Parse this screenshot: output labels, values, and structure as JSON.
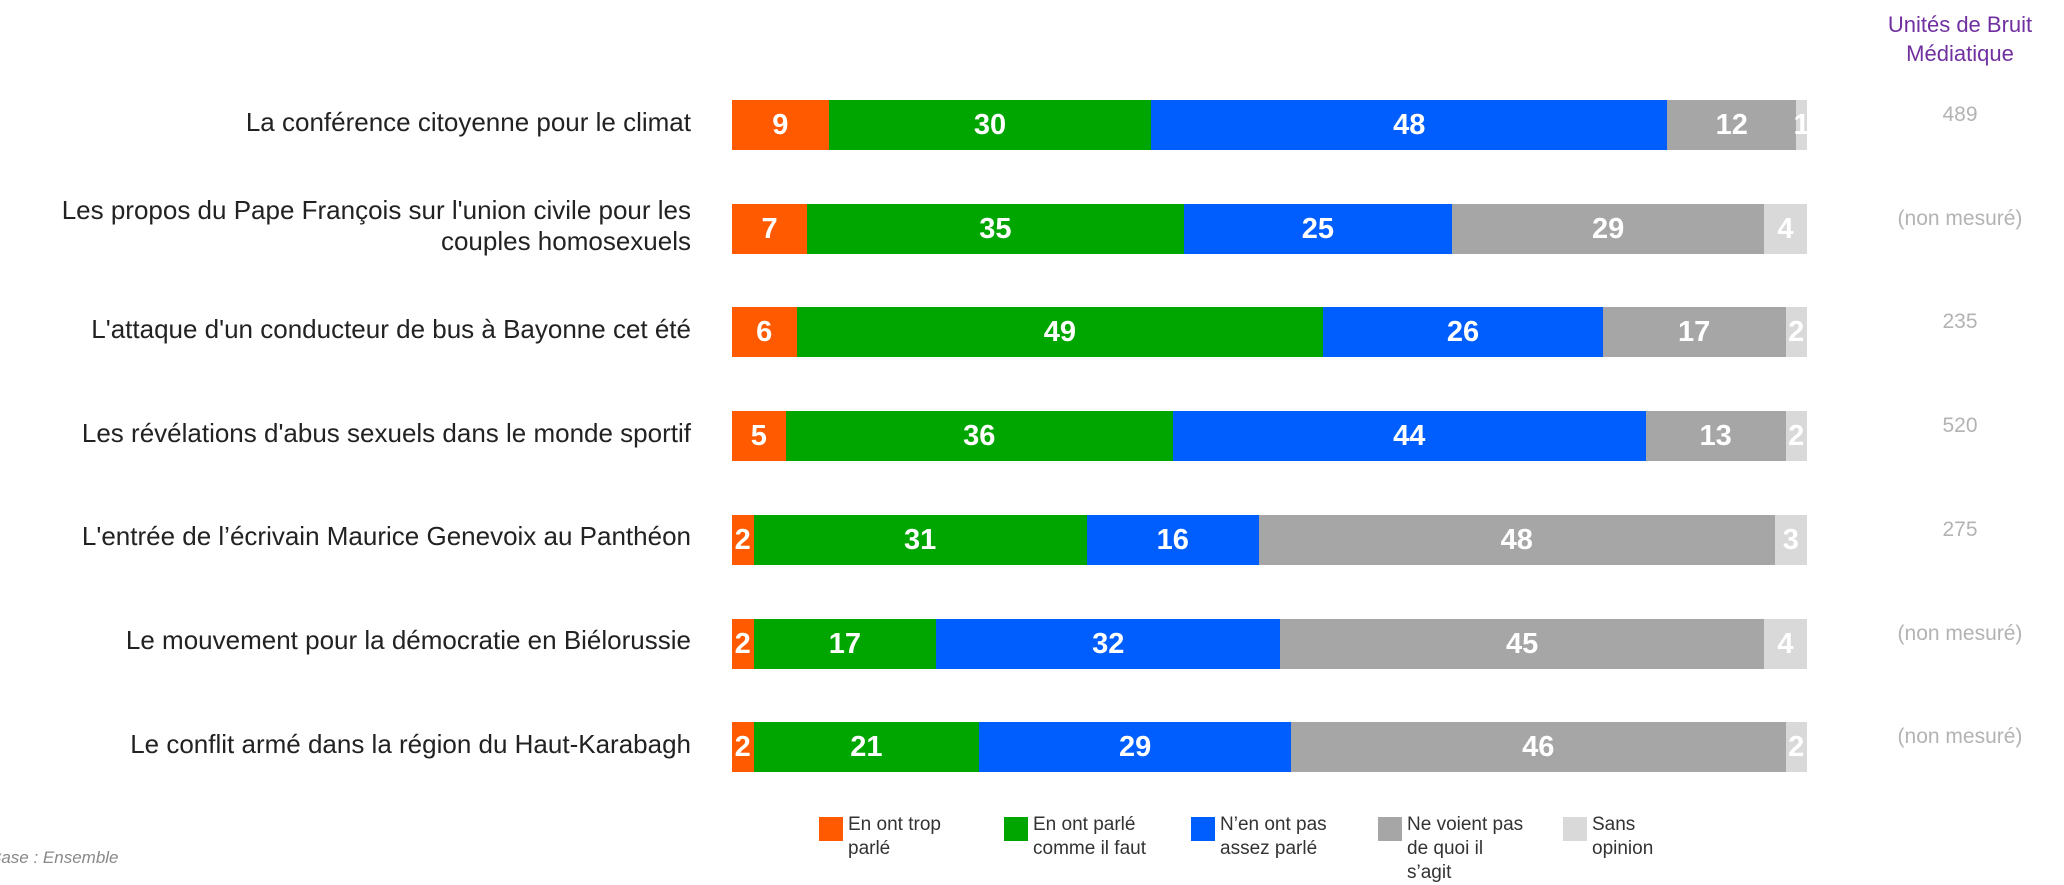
{
  "chart_data": {
    "type": "stacked-bar-horizontal",
    "categories": [
      "La conférence citoyenne pour le climat",
      "Les propos du Pape François sur l'union civile pour les couples homosexuels",
      "L'attaque d'un conducteur de bus à Bayonne cet été",
      "Les révélations d'abus sexuels dans le monde sportif",
      "L'entrée de l’écrivain Maurice Genevoix au Panthéon",
      "Le mouvement pour la démocratie en Biélorussie",
      "Le conflit armé dans la région du Haut-Karabagh"
    ],
    "xlim": [
      0,
      100
    ],
    "series": [
      {
        "name": "En ont trop parlé",
        "color": "#ff5a00",
        "values": [
          9,
          7,
          6,
          5,
          2,
          2,
          2
        ]
      },
      {
        "name": "En ont parlé comme il faut",
        "color": "#00a600",
        "values": [
          30,
          35,
          49,
          36,
          31,
          17,
          21
        ]
      },
      {
        "name": "N’en ont pas assez parlé",
        "color": "#005eff",
        "values": [
          48,
          25,
          26,
          44,
          16,
          32,
          29
        ]
      },
      {
        "name": "Ne voient pas de quoi il s’agit",
        "color": "#a6a6a6",
        "values": [
          12,
          29,
          17,
          13,
          48,
          45,
          46
        ]
      },
      {
        "name": "Sans opinion",
        "color": "#d9d9d9",
        "values": [
          1,
          4,
          2,
          2,
          3,
          4,
          2
        ]
      }
    ],
    "media_units": {
      "title": "Unités de Bruit Médiatique",
      "values": [
        489,
        "(non mesuré)",
        235,
        520,
        275,
        "(non mesuré)",
        "(non mesuré)"
      ]
    },
    "footnote": "Base : Ensemble"
  }
}
